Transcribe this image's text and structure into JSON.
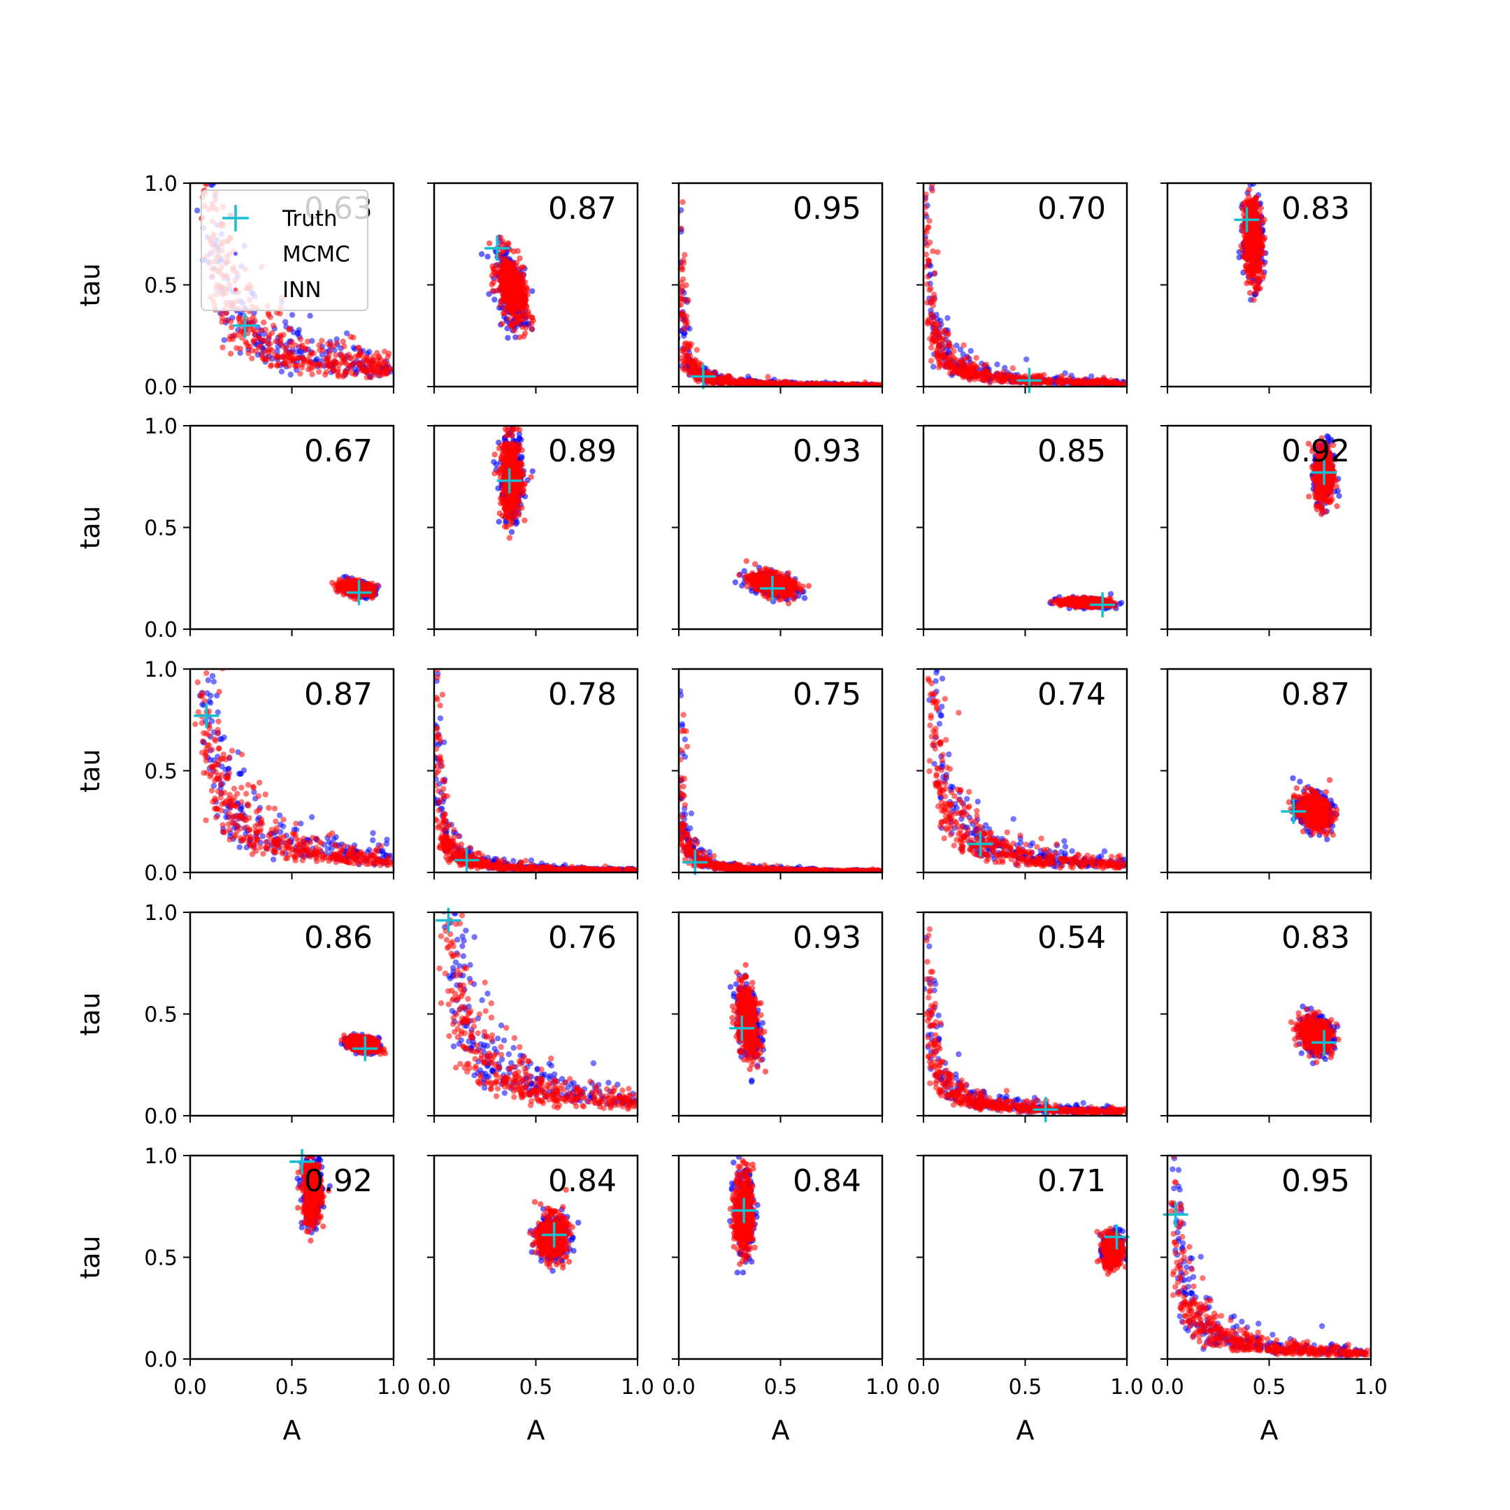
{
  "chart_data": {
    "type": "scatter",
    "layout": "5x5 grid of scatter panels",
    "xlabel": "A",
    "ylabel": "tau",
    "xlim": [
      0,
      1
    ],
    "ylim": [
      0,
      1
    ],
    "xticks": [
      "0.0",
      "0.5",
      "1.0"
    ],
    "yticks": [
      "0.0",
      "0.5",
      "1.0"
    ],
    "legend": {
      "position": "upper-left of first panel",
      "entries": [
        {
          "label": "Truth",
          "marker": "plus",
          "color": "#17becf"
        },
        {
          "label": "MCMC",
          "marker": "dot",
          "color": "#0000ff"
        },
        {
          "label": "INN",
          "marker": "dot",
          "color": "#ff0000"
        }
      ]
    },
    "colors": {
      "truth": "#17becf",
      "mcmc": "#0000ff",
      "inn": "#ff0000"
    },
    "panels": [
      {
        "score": "0.63",
        "truth": [
          0.27,
          0.3
        ],
        "shape": "banana"
      },
      {
        "score": "0.87",
        "truth": [
          0.31,
          0.68
        ],
        "shape": "blob",
        "center": [
          0.38,
          0.48
        ],
        "spread": [
          0.08,
          0.17
        ],
        "tilt": -0.55
      },
      {
        "score": "0.95",
        "truth": [
          0.12,
          0.05
        ],
        "shape": "banana"
      },
      {
        "score": "0.70",
        "truth": [
          0.52,
          0.03
        ],
        "shape": "banana"
      },
      {
        "score": "0.83",
        "truth": [
          0.39,
          0.82
        ],
        "shape": "blob",
        "center": [
          0.42,
          0.72
        ],
        "spread": [
          0.05,
          0.22
        ],
        "tilt": -0.15
      },
      {
        "score": "0.67",
        "truth": [
          0.83,
          0.18
        ],
        "shape": "blob",
        "center": [
          0.82,
          0.2
        ],
        "spread": [
          0.09,
          0.035
        ],
        "tilt": -0.3
      },
      {
        "score": "0.89",
        "truth": [
          0.37,
          0.73
        ],
        "shape": "blob",
        "center": [
          0.38,
          0.74
        ],
        "spread": [
          0.06,
          0.22
        ],
        "tilt": 0.0
      },
      {
        "score": "0.93",
        "truth": [
          0.46,
          0.2
        ],
        "shape": "blob",
        "center": [
          0.46,
          0.22
        ],
        "spread": [
          0.12,
          0.06
        ],
        "tilt": -0.45
      },
      {
        "score": "0.85",
        "truth": [
          0.88,
          0.12
        ],
        "shape": "blob",
        "center": [
          0.8,
          0.13
        ],
        "spread": [
          0.13,
          0.022
        ],
        "tilt": -0.15
      },
      {
        "score": "0.92",
        "truth": [
          0.77,
          0.77
        ],
        "shape": "blob",
        "center": [
          0.77,
          0.76
        ],
        "spread": [
          0.05,
          0.16
        ],
        "tilt": 0.0
      },
      {
        "score": "0.87",
        "truth": [
          0.08,
          0.77
        ],
        "shape": "banana"
      },
      {
        "score": "0.78",
        "truth": [
          0.16,
          0.06
        ],
        "shape": "banana"
      },
      {
        "score": "0.75",
        "truth": [
          0.08,
          0.05
        ],
        "shape": "banana"
      },
      {
        "score": "0.74",
        "truth": [
          0.28,
          0.14
        ],
        "shape": "banana"
      },
      {
        "score": "0.87",
        "truth": [
          0.62,
          0.3
        ],
        "shape": "blob",
        "center": [
          0.72,
          0.3
        ],
        "spread": [
          0.09,
          0.09
        ],
        "tilt": -0.25
      },
      {
        "score": "0.86",
        "truth": [
          0.86,
          0.33
        ],
        "shape": "blob",
        "center": [
          0.85,
          0.35
        ],
        "spread": [
          0.08,
          0.04
        ],
        "tilt": -0.35
      },
      {
        "score": "0.76",
        "truth": [
          0.07,
          0.96
        ],
        "shape": "banana"
      },
      {
        "score": "0.93",
        "truth": [
          0.31,
          0.43
        ],
        "shape": "blob",
        "center": [
          0.34,
          0.46
        ],
        "spread": [
          0.06,
          0.18
        ],
        "tilt": -0.4
      },
      {
        "score": "0.54",
        "truth": [
          0.6,
          0.03
        ],
        "shape": "banana"
      },
      {
        "score": "0.83",
        "truth": [
          0.77,
          0.36
        ],
        "shape": "blob",
        "center": [
          0.73,
          0.4
        ],
        "spread": [
          0.09,
          0.09
        ],
        "tilt": -0.2
      },
      {
        "score": "0.92",
        "truth": [
          0.55,
          0.97
        ],
        "shape": "blob",
        "center": [
          0.6,
          0.82
        ],
        "spread": [
          0.05,
          0.18
        ],
        "tilt": 0.0
      },
      {
        "score": "0.84",
        "truth": [
          0.59,
          0.61
        ],
        "shape": "blob",
        "center": [
          0.58,
          0.6
        ],
        "spread": [
          0.08,
          0.12
        ],
        "tilt": 0.0
      },
      {
        "score": "0.84",
        "truth": [
          0.32,
          0.73
        ],
        "shape": "blob",
        "center": [
          0.32,
          0.72
        ],
        "spread": [
          0.05,
          0.22
        ],
        "tilt": 0.0
      },
      {
        "score": "0.71",
        "truth": [
          0.95,
          0.6
        ],
        "shape": "blob",
        "center": [
          0.93,
          0.54
        ],
        "spread": [
          0.05,
          0.09
        ],
        "tilt": 0.0
      },
      {
        "score": "0.95",
        "truth": [
          0.04,
          0.71
        ],
        "shape": "banana"
      }
    ]
  }
}
